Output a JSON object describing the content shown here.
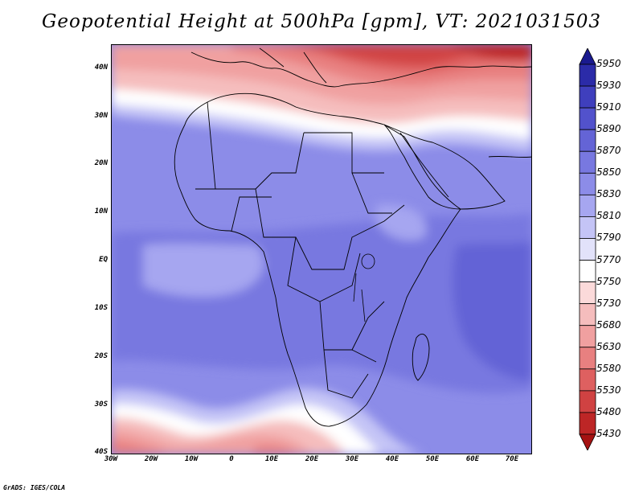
{
  "title": "Geopotential Height at 500hPa [gpm], VT: 2021031503",
  "footer": "GrADS: IGES/COLA",
  "lat_labels": [
    "40N",
    "30N",
    "20N",
    "10N",
    "EQ",
    "10S",
    "20S",
    "30S",
    "40S"
  ],
  "lon_labels": [
    "30W",
    "20W",
    "10W",
    "0",
    "10E",
    "20E",
    "30E",
    "40E",
    "50E",
    "60E",
    "70E"
  ],
  "colorbar": {
    "labels": [
      "5950",
      "5930",
      "5910",
      "5890",
      "5870",
      "5850",
      "5830",
      "5810",
      "5790",
      "5770",
      "5750",
      "5730",
      "5680",
      "5630",
      "5580",
      "5530",
      "5480",
      "5430"
    ],
    "colors": [
      "#1a1a8f",
      "#2b2ba8",
      "#3f3fbd",
      "#5252cc",
      "#6464d6",
      "#7878e0",
      "#8c8ce8",
      "#a6a6f0",
      "#c4c4f6",
      "#e2e2fa",
      "#ffffff",
      "#fbdada",
      "#f5bdbd",
      "#f0a0a0",
      "#e88080",
      "#de6060",
      "#d04242",
      "#bd2626",
      "#a51212"
    ]
  },
  "chart_data": {
    "type": "heatmap",
    "title": "Geopotential Height at 500hPa [gpm], VT: 2021031503",
    "variable": "Geopotential Height",
    "level": "500hPa",
    "units": "gpm",
    "valid_time": "2021031503",
    "lon_range": [
      -30,
      75
    ],
    "lat_range": [
      -40,
      44
    ],
    "levels": [
      5430,
      5480,
      5530,
      5580,
      5630,
      5680,
      5730,
      5750,
      5770,
      5790,
      5810,
      5830,
      5850,
      5870,
      5890,
      5910,
      5930,
      5950
    ]
  }
}
